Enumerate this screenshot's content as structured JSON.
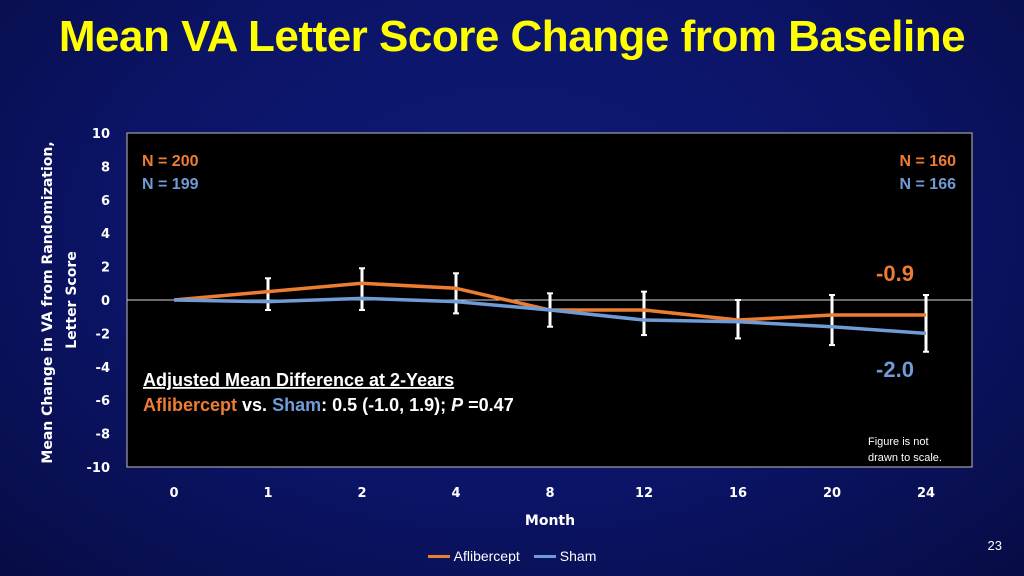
{
  "slide": {
    "title": "Mean VA Letter Score Change from Baseline",
    "page_number": "23"
  },
  "chart_data": {
    "type": "line",
    "title": "",
    "xlabel": "Month",
    "ylabel": "Mean Change in VA from Randomization, Letter Score",
    "categories": [
      "0",
      "1",
      "2",
      "4",
      "8",
      "12",
      "16",
      "20",
      "24"
    ],
    "ylim": [
      -10,
      10
    ],
    "yticks": [
      10,
      8,
      6,
      4,
      2,
      0,
      -2,
      -4,
      -6,
      -8,
      -10
    ],
    "series": [
      {
        "name": "Aflibercept",
        "color": "#ed7d31",
        "values": [
          0.0,
          0.5,
          1.0,
          0.7,
          -0.6,
          -0.6,
          -1.2,
          -0.9,
          -0.9
        ],
        "err_low": [
          0.0,
          -0.6,
          -0.6,
          -0.8,
          -1.6,
          -2.1,
          -2.3,
          -2.7,
          -3.1
        ],
        "err_high": [
          0.0,
          1.3,
          1.9,
          1.6,
          0.4,
          0.5,
          0.0,
          0.3,
          0.3
        ]
      },
      {
        "name": "Sham",
        "color": "#6f9bd6",
        "values": [
          0.0,
          -0.1,
          0.1,
          -0.1,
          -0.6,
          -1.2,
          -1.3,
          -1.6,
          -2.0
        ],
        "err_low": [
          0.0,
          -0.6,
          -0.6,
          -0.8,
          -1.6,
          -2.1,
          -2.3,
          -2.7,
          -3.1
        ],
        "err_high": [
          0.0,
          1.3,
          1.9,
          1.6,
          0.4,
          0.5,
          0.0,
          0.3,
          0.3
        ]
      }
    ],
    "annotations": {
      "n_left_afl": "N = 200",
      "n_left_sham": "N = 199",
      "n_right_afl": "N = 160",
      "n_right_sham": "N = 166",
      "end_label_afl": "-0.9",
      "end_label_sham": "-2.0",
      "diff_heading": "Adjusted Mean Difference at 2-Years",
      "diff_afl": "Aflibercept",
      "diff_vs": " vs. ",
      "diff_sham": "Sham",
      "diff_stat": ": 0.5 (-1.0, 1.9); ",
      "diff_p": "P",
      "diff_pval": " =0.47",
      "scale_note_1": "Figure is not",
      "scale_note_2": "drawn to scale."
    },
    "legend": [
      "Aflibercept",
      "Sham"
    ]
  }
}
